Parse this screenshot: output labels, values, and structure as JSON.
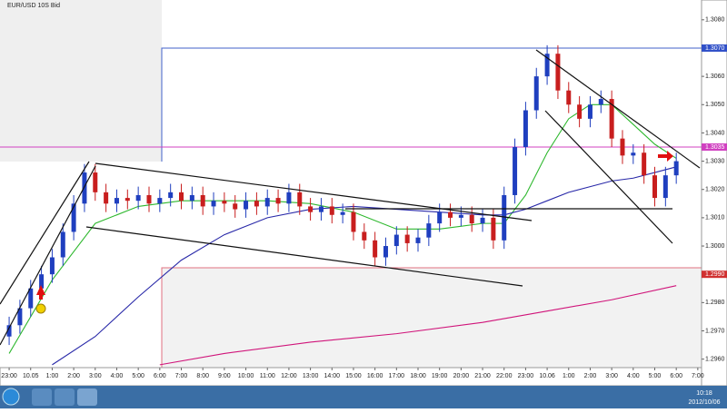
{
  "chart_data": {
    "type": "candlestick",
    "title": "EUR/USD 10S Bid",
    "up_color": "#1f3fbf",
    "down_color": "#c81e1e",
    "xlim": [
      -0.85,
      64.35
    ],
    "ylim": [
      1.2957,
      1.3087
    ],
    "xticks": [
      {
        "value": 0,
        "label": "23:00"
      },
      {
        "value": 2,
        "label": "10.05"
      },
      {
        "value": 4,
        "label": "1:00"
      },
      {
        "value": 6,
        "label": "2:00"
      },
      {
        "value": 8,
        "label": "3:00"
      },
      {
        "value": 10,
        "label": "4:00"
      },
      {
        "value": 12,
        "label": "5:00"
      },
      {
        "value": 14,
        "label": "6:00"
      },
      {
        "value": 16,
        "label": "7:00"
      },
      {
        "value": 18,
        "label": "8:00"
      },
      {
        "value": 20,
        "label": "9:00"
      },
      {
        "value": 22,
        "label": "10:00"
      },
      {
        "value": 24,
        "label": "11:00"
      },
      {
        "value": 26,
        "label": "12:00"
      },
      {
        "value": 28,
        "label": "13:00"
      },
      {
        "value": 30,
        "label": "14:00"
      },
      {
        "value": 32,
        "label": "15:00"
      },
      {
        "value": 34,
        "label": "16:00"
      },
      {
        "value": 36,
        "label": "17:00"
      },
      {
        "value": 38,
        "label": "18:00"
      },
      {
        "value": 40,
        "label": "19:00"
      },
      {
        "value": 42,
        "label": "20:00"
      },
      {
        "value": 44,
        "label": "21:00"
      },
      {
        "value": 46,
        "label": "22:00"
      },
      {
        "value": 48,
        "label": "23:00"
      },
      {
        "value": 50,
        "label": "10.06"
      },
      {
        "value": 52,
        "label": "1:00"
      },
      {
        "value": 54,
        "label": "2:00"
      },
      {
        "value": 56,
        "label": "3:00"
      },
      {
        "value": 58,
        "label": "4:00"
      },
      {
        "value": 60,
        "label": "5:00"
      },
      {
        "value": 62,
        "label": "6:00"
      },
      {
        "value": 64,
        "label": "7:00"
      }
    ],
    "yticks": [
      {
        "value": 1.296,
        "label": "1.2960"
      },
      {
        "value": 1.297,
        "label": "1.2970"
      },
      {
        "value": 1.298,
        "label": "1.2980"
      },
      {
        "value": 1.299,
        "label": "1.2990"
      },
      {
        "value": 1.3,
        "label": "1.3000"
      },
      {
        "value": 1.301,
        "label": "1.3010"
      },
      {
        "value": 1.302,
        "label": "1.3020"
      },
      {
        "value": 1.303,
        "label": "1.3030"
      },
      {
        "value": 1.304,
        "label": "1.3040"
      },
      {
        "value": 1.305,
        "label": "1.3050"
      },
      {
        "value": 1.306,
        "label": "1.3060"
      },
      {
        "value": 1.307,
        "label": "1.3070"
      },
      {
        "value": 1.308,
        "label": "1.3080"
      }
    ],
    "price_markers": [
      {
        "value": 1.307,
        "label": "1.3070",
        "color": "#3050c8"
      },
      {
        "value": 1.3035,
        "label": "1.3035",
        "color": "#d040c0"
      },
      {
        "value": 1.299,
        "label": "1.2990",
        "color": "#d03030"
      }
    ],
    "ohlc": [
      [
        1.2968,
        1.2975,
        1.2965,
        1.2972
      ],
      [
        1.2972,
        1.2981,
        1.2969,
        1.2978
      ],
      [
        1.2978,
        1.2988,
        1.2975,
        1.2985
      ],
      [
        1.2985,
        1.2993,
        1.2982,
        1.299
      ],
      [
        1.299,
        1.2999,
        1.2987,
        1.2996
      ],
      [
        1.2996,
        1.3008,
        1.2993,
        1.3005
      ],
      [
        1.3005,
        1.3018,
        1.3002,
        1.3015
      ],
      [
        1.3015,
        1.3029,
        1.3012,
        1.3026
      ],
      [
        1.3026,
        1.3029,
        1.3016,
        1.3019
      ],
      [
        1.3019,
        1.3022,
        1.3012,
        1.3015
      ],
      [
        1.3015,
        1.302,
        1.3012,
        1.3017
      ],
      [
        1.3017,
        1.302,
        1.3013,
        1.3016
      ],
      [
        1.3016,
        1.3021,
        1.3013,
        1.3018
      ],
      [
        1.3018,
        1.3021,
        1.3012,
        1.3015
      ],
      [
        1.3015,
        1.302,
        1.3012,
        1.3017
      ],
      [
        1.3017,
        1.3022,
        1.3014,
        1.3019
      ],
      [
        1.3019,
        1.3022,
        1.3013,
        1.3016
      ],
      [
        1.3016,
        1.3021,
        1.3013,
        1.3018
      ],
      [
        1.3018,
        1.3021,
        1.3011,
        1.3014
      ],
      [
        1.3014,
        1.3019,
        1.3011,
        1.3016
      ],
      [
        1.3016,
        1.3019,
        1.3012,
        1.3015
      ],
      [
        1.3015,
        1.3018,
        1.301,
        1.3013
      ],
      [
        1.3013,
        1.3019,
        1.301,
        1.3016
      ],
      [
        1.3016,
        1.3019,
        1.3011,
        1.3014
      ],
      [
        1.3014,
        1.302,
        1.3011,
        1.3017
      ],
      [
        1.3017,
        1.302,
        1.3012,
        1.3015
      ],
      [
        1.3015,
        1.3022,
        1.3012,
        1.3019
      ],
      [
        1.3019,
        1.3022,
        1.3011,
        1.3014
      ],
      [
        1.3014,
        1.3017,
        1.3009,
        1.3012
      ],
      [
        1.3012,
        1.3017,
        1.3009,
        1.3014
      ],
      [
        1.3014,
        1.3017,
        1.3008,
        1.3011
      ],
      [
        1.3011,
        1.3015,
        1.3008,
        1.3012
      ],
      [
        1.3012,
        1.3015,
        1.3002,
        1.3005
      ],
      [
        1.3005,
        1.3008,
        1.2999,
        1.3002
      ],
      [
        1.3002,
        1.3005,
        1.2993,
        1.2996
      ],
      [
        1.2996,
        1.3003,
        1.2993,
        1.3
      ],
      [
        1.3,
        1.3007,
        1.2997,
        1.3004
      ],
      [
        1.3004,
        1.3007,
        1.2998,
        1.3001
      ],
      [
        1.3001,
        1.3006,
        1.2998,
        1.3003
      ],
      [
        1.3003,
        1.3011,
        1.3,
        1.3008
      ],
      [
        1.3008,
        1.3015,
        1.3005,
        1.3012
      ],
      [
        1.3012,
        1.3015,
        1.3007,
        1.301
      ],
      [
        1.301,
        1.3014,
        1.3007,
        1.3011
      ],
      [
        1.3011,
        1.3014,
        1.3005,
        1.3008
      ],
      [
        1.3008,
        1.3013,
        1.3005,
        1.301
      ],
      [
        1.301,
        1.3013,
        1.2999,
        1.3002
      ],
      [
        1.3002,
        1.3021,
        1.2999,
        1.3018
      ],
      [
        1.3018,
        1.3038,
        1.3015,
        1.3035
      ],
      [
        1.3035,
        1.3051,
        1.3032,
        1.3048
      ],
      [
        1.3048,
        1.3063,
        1.3045,
        1.306
      ],
      [
        1.306,
        1.3071,
        1.3057,
        1.3068
      ],
      [
        1.3068,
        1.3071,
        1.3052,
        1.3055
      ],
      [
        1.3055,
        1.3058,
        1.3047,
        1.305
      ],
      [
        1.305,
        1.3053,
        1.3042,
        1.3045
      ],
      [
        1.3045,
        1.3053,
        1.3042,
        1.305
      ],
      [
        1.305,
        1.3055,
        1.3047,
        1.3052
      ],
      [
        1.3052,
        1.3055,
        1.3035,
        1.3038
      ],
      [
        1.3038,
        1.3041,
        1.3029,
        1.3032
      ],
      [
        1.3032,
        1.3036,
        1.3029,
        1.3033
      ],
      [
        1.3033,
        1.3036,
        1.3022,
        1.3025
      ],
      [
        1.3025,
        1.3028,
        1.3014,
        1.3017
      ],
      [
        1.3017,
        1.3028,
        1.3014,
        1.3025
      ],
      [
        1.3025,
        1.3033,
        1.3022,
        1.303
      ]
    ],
    "series": [
      {
        "color": "#2eb82e",
        "x": [
          0,
          4,
          8,
          12,
          16,
          20,
          24,
          28,
          32,
          36,
          40,
          44,
          46,
          48,
          50,
          52,
          54,
          56,
          58,
          60,
          62
        ],
        "values": [
          1.2962,
          1.2988,
          1.3008,
          1.3014,
          1.3016,
          1.3016,
          1.3016,
          1.3015,
          1.3012,
          1.3006,
          1.3006,
          1.3008,
          1.3008,
          1.3018,
          1.3033,
          1.3045,
          1.305,
          1.305,
          1.3043,
          1.3036,
          1.3031
        ]
      },
      {
        "color": "#2828a8",
        "x": [
          4,
          8,
          12,
          16,
          20,
          24,
          28,
          32,
          36,
          40,
          44,
          46,
          48,
          50,
          52,
          54,
          56,
          58,
          60,
          62
        ],
        "values": [
          1.2958,
          1.2968,
          1.2982,
          1.2995,
          1.3004,
          1.301,
          1.3013,
          1.3014,
          1.3013,
          1.3012,
          1.3011,
          1.3011,
          1.3013,
          1.3016,
          1.3019,
          1.3021,
          1.3023,
          1.3024,
          1.3026,
          1.3028
        ]
      },
      {
        "color": "#d0147a",
        "x": [
          14,
          20,
          28,
          36,
          44,
          50,
          56,
          62
        ],
        "values": [
          1.2958,
          1.2962,
          1.2966,
          1.2969,
          1.2973,
          1.2977,
          1.2981,
          1.2986
        ]
      }
    ]
  },
  "taskbar": {
    "time": "10:18",
    "date": "2012/10/06"
  }
}
